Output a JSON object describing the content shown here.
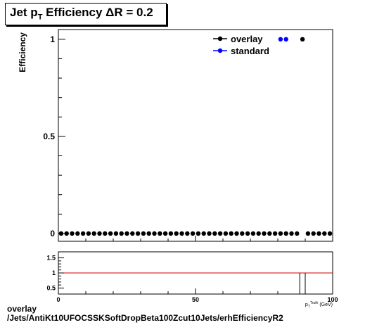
{
  "title": {
    "prefix": "Jet p",
    "sub": "T",
    "suffix": " Efficiency  ΔR = 0.2"
  },
  "footer": {
    "line1": "overlay",
    "line2": "/Jets/AntiKt10UFOCSSKSoftDropBeta100Zcut10Jets/erhEfficiencyR2"
  },
  "colors": {
    "overlay": "#000000",
    "standard": "#0000ff",
    "ratio_line": "#cc0000"
  },
  "chart_data": [
    {
      "type": "scatter",
      "ylabel": "Efficiency",
      "xlim": [
        0,
        100
      ],
      "ylim": [
        -0.04,
        1.05
      ],
      "y_ticks": [
        0,
        0.5,
        1
      ],
      "y_tick_labels": [
        "0",
        "0.5",
        "1"
      ],
      "legend": {
        "placement": "top-right",
        "entries": [
          "overlay",
          "standard"
        ]
      },
      "series": [
        {
          "name": "overlay",
          "color": "#000000",
          "x": [
            1,
            3,
            5,
            7,
            9,
            11,
            13,
            15,
            17,
            19,
            21,
            23,
            25,
            27,
            29,
            31,
            33,
            35,
            37,
            39,
            41,
            43,
            45,
            47,
            49,
            51,
            53,
            55,
            57,
            59,
            61,
            63,
            65,
            67,
            69,
            71,
            73,
            75,
            77,
            79,
            81,
            83,
            85,
            87,
            89,
            91,
            93,
            95,
            97,
            99
          ],
          "y": [
            0,
            0,
            0,
            0,
            0,
            0,
            0,
            0,
            0,
            0,
            0,
            0,
            0,
            0,
            0,
            0,
            0,
            0,
            0,
            0,
            0,
            0,
            0,
            0,
            0,
            0,
            0,
            0,
            0,
            0,
            0,
            0,
            0,
            0,
            0,
            0,
            0,
            0,
            0,
            0,
            0,
            0,
            0,
            0,
            1,
            0,
            0,
            0,
            0,
            0
          ]
        },
        {
          "name": "standard",
          "color": "#0000ff",
          "x": [
            81,
            83
          ],
          "y": [
            1,
            1
          ]
        }
      ]
    },
    {
      "type": "line",
      "xlim": [
        0,
        100
      ],
      "ylim": [
        0.3,
        1.7
      ],
      "x_ticks": [
        0,
        50,
        100
      ],
      "x_tick_labels": [
        "0",
        "50",
        "100"
      ],
      "y_ticks": [
        0.5,
        1,
        1.5
      ],
      "y_tick_labels": [
        "0.5",
        "1",
        "1.5"
      ],
      "xlabel": "p_T^{Truth} (GeV)",
      "reference_line": 1,
      "spikes_x": [
        88,
        90
      ]
    }
  ]
}
